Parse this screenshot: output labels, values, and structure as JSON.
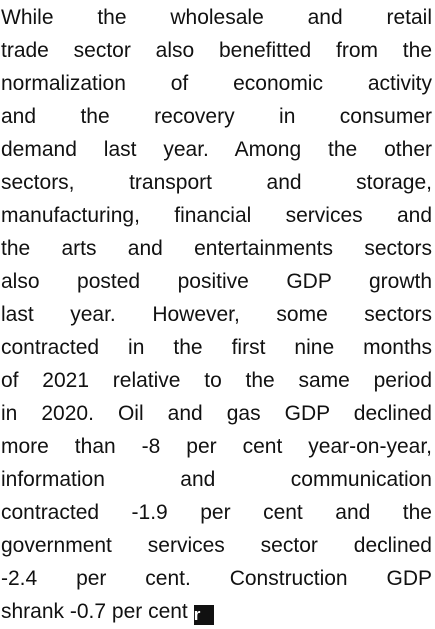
{
  "paragraph": {
    "lines": [
      "While the wholesale and retail",
      "trade sector also benefitted from the",
      "normalization of economic activity",
      "and the recovery in consumer",
      "demand last year. Among the other",
      "sectors, transport and storage,",
      "manufacturing, financial services and",
      "the arts and entertainments sectors",
      "also posted positive GDP growth",
      "last year. However, some sectors",
      "contracted in the first nine months",
      "of 2021 relative to the same period",
      "in 2020. Oil and gas GDP declined",
      "more than -8 per cent year-on-year,",
      "information and communication",
      "contracted -1.9 per cent and the",
      "government services sector declined",
      "-2.4 per cent. Construction GDP",
      "shrank -0.7 per cent"
    ],
    "icon_label": "r"
  }
}
